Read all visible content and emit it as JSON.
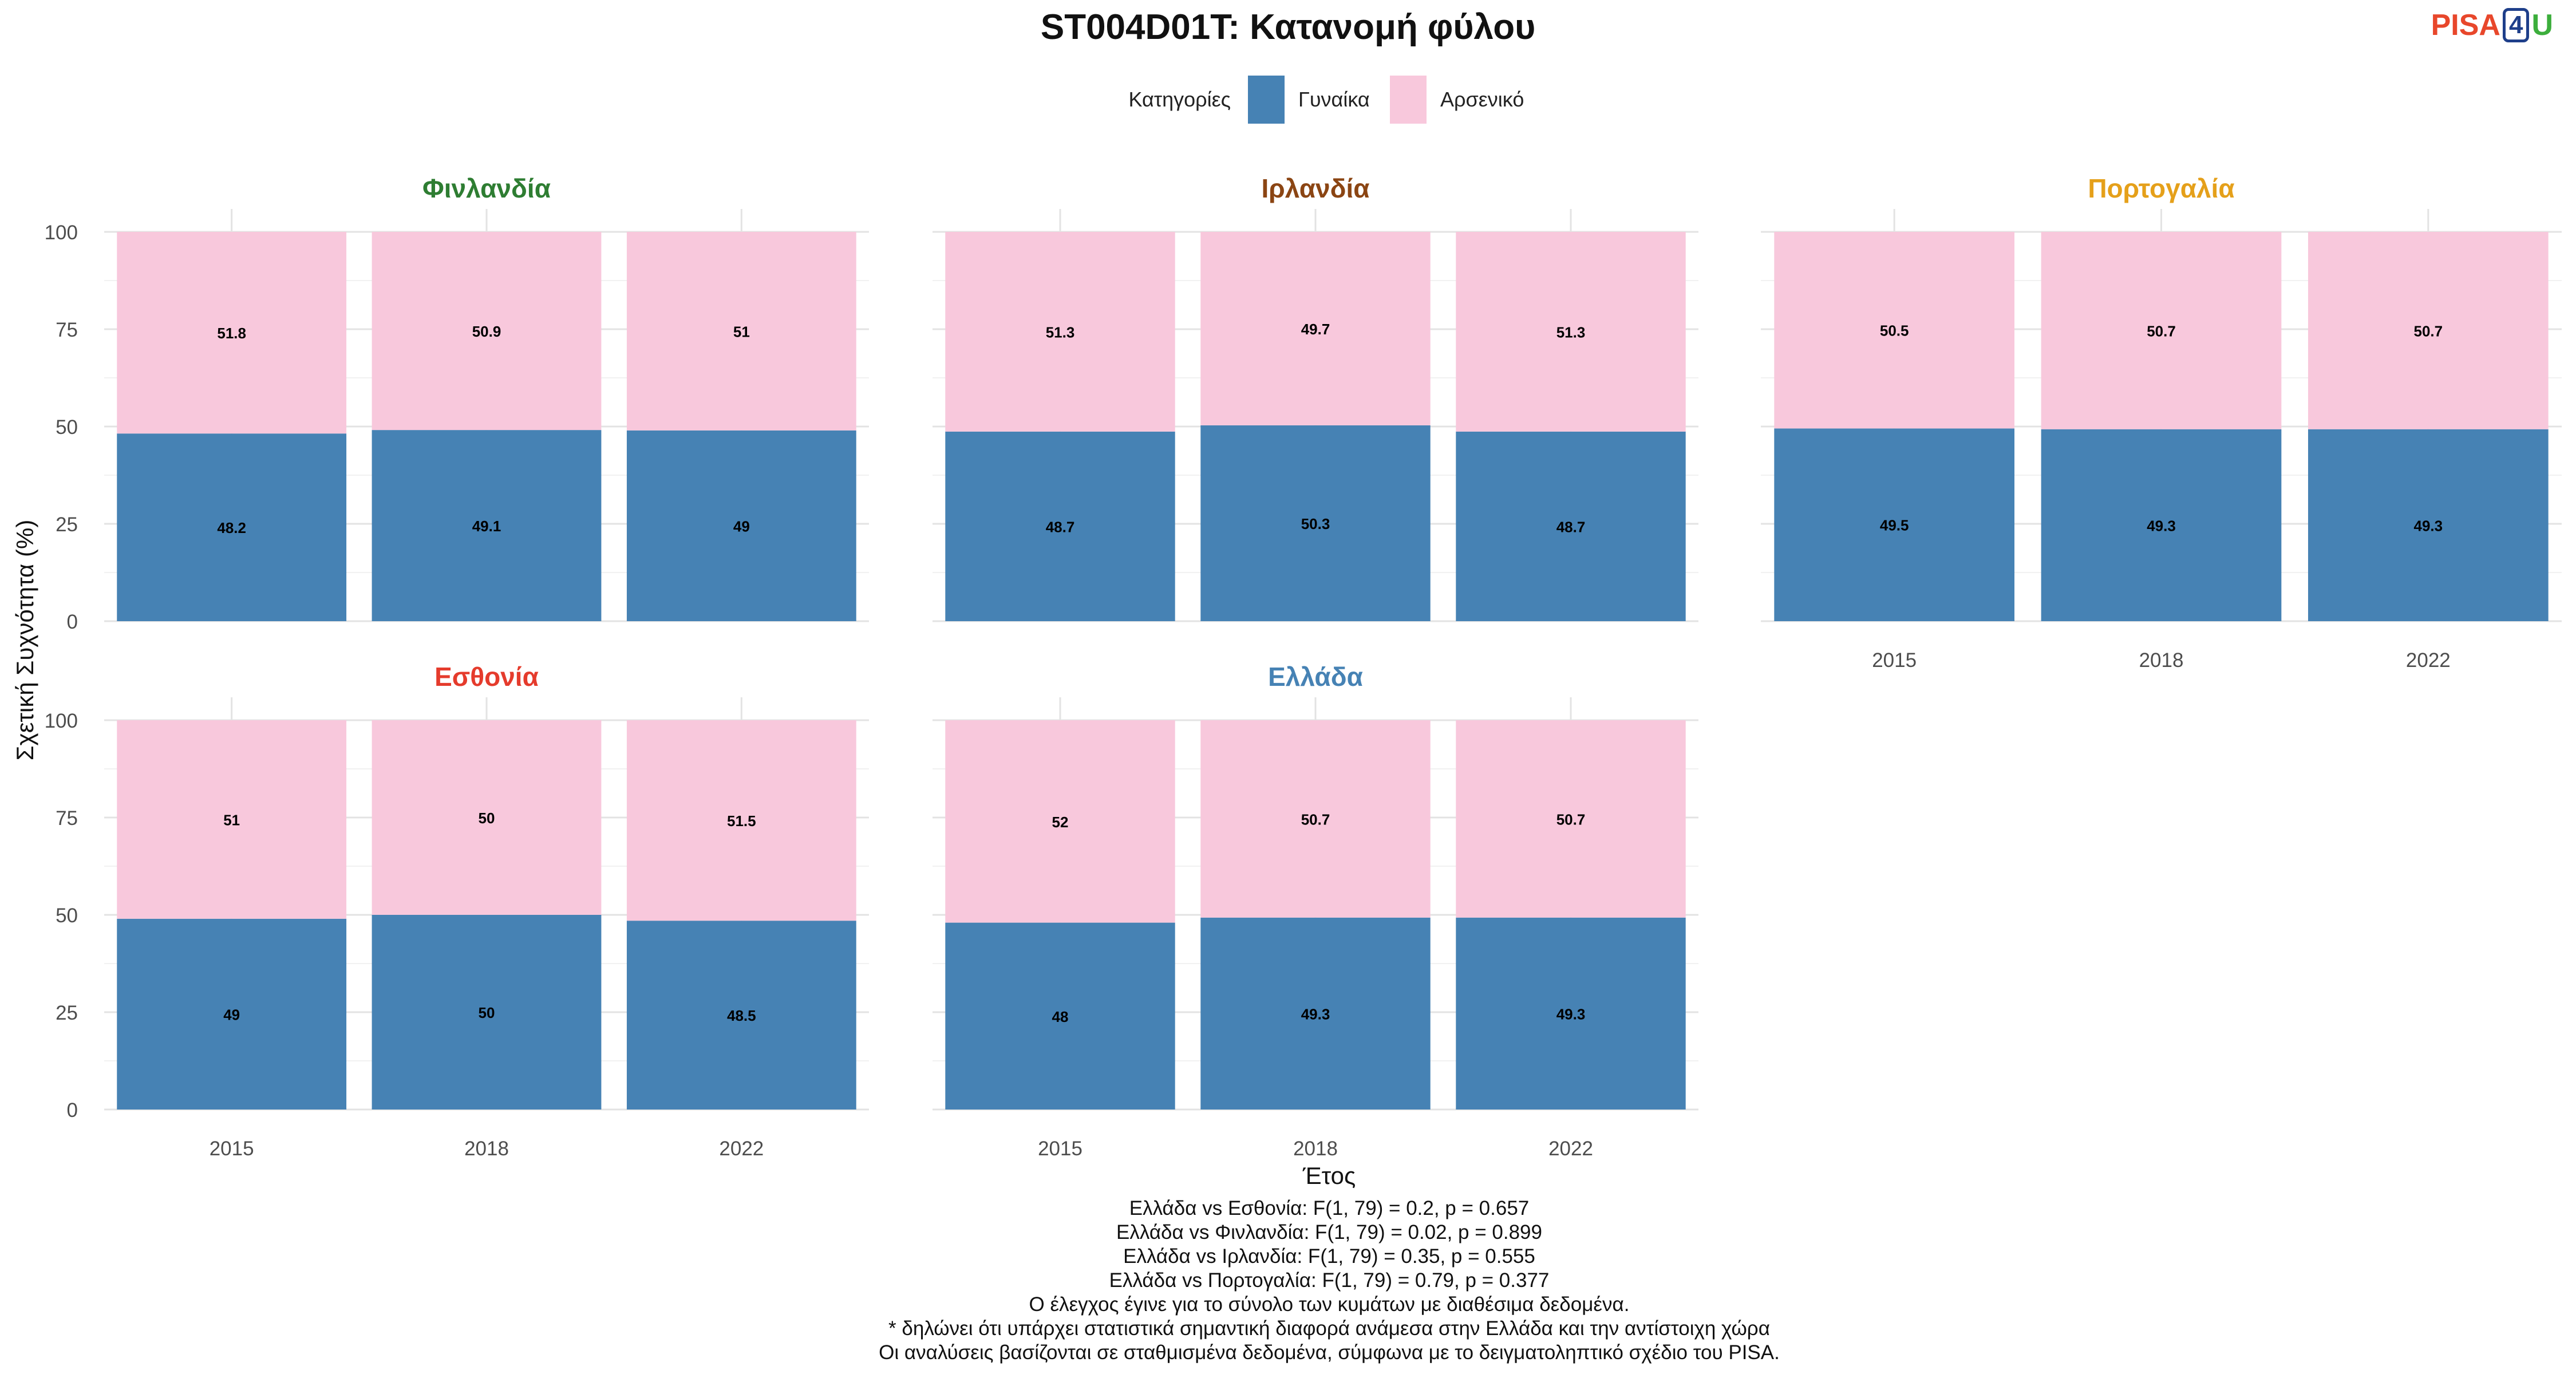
{
  "title": "ST004D01T: Κατανομή φύλου",
  "logo": {
    "part1": "PISA",
    "part2": "4",
    "part3": "U"
  },
  "legend": {
    "title": "Κατηγορίες",
    "items": [
      {
        "label": "Γυναίκα",
        "color": "#4682b4"
      },
      {
        "label": "Αρσενικό",
        "color": "#f8c8dc"
      }
    ]
  },
  "footnotes": [
    "Ελλάδα vs Εσθονία: F(1, 79) = 0.2, p = 0.657",
    "Ελλάδα vs Φινλανδία: F(1, 79) = 0.02, p = 0.899",
    "Ελλάδα vs Ιρλανδία: F(1, 79) = 0.35, p = 0.555",
    "Ελλάδα vs Πορτογαλία: F(1, 79) = 0.79, p = 0.377",
    "Ο έλεγχος έγινε για το σύνολο των κυμάτων με διαθέσιμα δεδομένα.",
    "* δηλώνει ότι υπάρχει στατιστικά σημαντική διαφορά ανάμεσα στην Ελλάδα και την αντίστοιχη χώρα",
    "Οι αναλύσεις βασίζονται σε σταθμισμένα δεδομένα, σύμφωνα με το δειγματοληπτικό σχέδιο του PISA."
  ],
  "chart_data": {
    "type": "bar",
    "stacked": true,
    "xlabel": "Έτος",
    "ylabel": "Σχετική Συχνότητα (%)",
    "ylim": [
      0,
      100
    ],
    "yticks": [
      0,
      25,
      50,
      75,
      100
    ],
    "categories": [
      "2015",
      "2018",
      "2022"
    ],
    "grid": true,
    "legend_position": "top",
    "panels": [
      {
        "name": "Φινλανδία",
        "title_color": "#2e7d32",
        "series": [
          {
            "name": "Γυναίκα",
            "values": [
              48.2,
              49.1,
              49
            ],
            "labels": [
              "48.2",
              "49.1",
              "49"
            ]
          },
          {
            "name": "Αρσενικό",
            "values": [
              51.8,
              50.9,
              51
            ],
            "labels": [
              "51.8",
              "50.9",
              "51"
            ]
          }
        ]
      },
      {
        "name": "Ιρλανδία",
        "title_color": "#8b4513",
        "series": [
          {
            "name": "Γυναίκα",
            "values": [
              48.7,
              50.3,
              48.7
            ],
            "labels": [
              "48.7",
              "50.3",
              "48.7"
            ]
          },
          {
            "name": "Αρσενικό",
            "values": [
              51.3,
              49.7,
              51.3
            ],
            "labels": [
              "51.3",
              "49.7",
              "51.3"
            ]
          }
        ]
      },
      {
        "name": "Πορτογαλία",
        "title_color": "#e5a01a",
        "series": [
          {
            "name": "Γυναίκα",
            "values": [
              49.5,
              49.3,
              49.3
            ],
            "labels": [
              "49.5",
              "49.3",
              "49.3"
            ]
          },
          {
            "name": "Αρσενικό",
            "values": [
              50.5,
              50.7,
              50.7
            ],
            "labels": [
              "50.5",
              "50.7",
              "50.7"
            ]
          }
        ]
      },
      {
        "name": "Εσθονία",
        "title_color": "#e53b2c",
        "series": [
          {
            "name": "Γυναίκα",
            "values": [
              49,
              50,
              48.5
            ],
            "labels": [
              "49",
              "50",
              "48.5"
            ]
          },
          {
            "name": "Αρσενικό",
            "values": [
              51,
              50,
              51.5
            ],
            "labels": [
              "51",
              "50",
              "51.5"
            ]
          }
        ]
      },
      {
        "name": "Ελλάδα",
        "title_color": "#4682b4",
        "series": [
          {
            "name": "Γυναίκα",
            "values": [
              48,
              49.3,
              49.3
            ],
            "labels": [
              "48",
              "49.3",
              "49.3"
            ]
          },
          {
            "name": "Αρσενικό",
            "values": [
              52,
              50.7,
              50.7
            ],
            "labels": [
              "52",
              "50.7",
              "50.7"
            ]
          }
        ]
      }
    ]
  }
}
